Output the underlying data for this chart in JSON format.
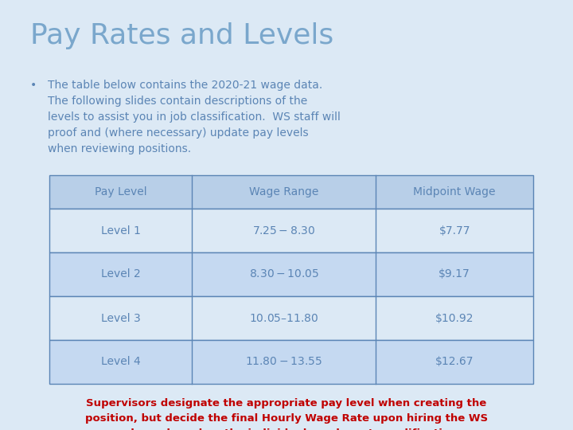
{
  "title": "Pay Rates and Levels",
  "title_color": "#7aa7cc",
  "bg_color": "#dce9f5",
  "bullet_text": "The table below contains the 2020-21 wage data.\nThe following slides contain descriptions of the\nlevels to assist you in job classification.  WS staff will\nproof and (where necessary) update pay levels\nwhen reviewing positions.",
  "bullet_color": "#5b85b5",
  "table_headers": [
    "Pay Level",
    "Wage Range",
    "Midpoint Wage"
  ],
  "table_rows": [
    [
      "Level 1",
      "$7.25 - $8.30",
      "$7.77"
    ],
    [
      "Level 2",
      "$8.30 - $10.05",
      "$9.17"
    ],
    [
      "Level 3",
      "$10.05 – $11.80",
      "$10.92"
    ],
    [
      "Level 4",
      "$11.80 - $13.55",
      "$12.67"
    ]
  ],
  "table_header_color": "#b8cfe8",
  "table_row_color_odd": "#dce9f5",
  "table_row_color_even": "#c5d9f1",
  "table_text_color": "#5b85b5",
  "table_border_color": "#5b85b5",
  "footer_text": "Supervisors designate the appropriate pay level when creating the\nposition, but decide the final Hourly Wage Rate upon hiring the WS\nemployee based on the individual employee’s qualifications.",
  "footer_color": "#c00000",
  "title_fontsize": 26,
  "bullet_fontsize": 10,
  "table_fontsize": 10,
  "footer_fontsize": 9.5
}
